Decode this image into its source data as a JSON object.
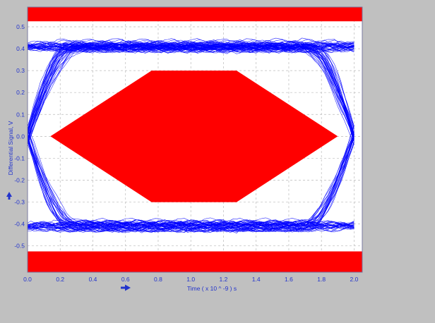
{
  "chart_data": {
    "type": "eye-diagram",
    "xlabel": "Time  ( x 10 ^ -9 ) s",
    "ylabel": "Differential Signal, V",
    "xlim": [
      0.0,
      2.05
    ],
    "ylim": [
      -0.62,
      0.59
    ],
    "x_ticks": [
      0.0,
      0.2,
      0.4,
      0.6,
      0.8,
      1.0,
      1.2,
      1.4,
      1.6,
      1.8,
      2.0
    ],
    "x_tick_labels": [
      "0.0",
      "0.2",
      "0.4",
      "0.6",
      "0.8",
      "1.0",
      "1.2",
      "1.4",
      "1.6",
      "1.8",
      "2.0"
    ],
    "y_ticks": [
      0.5,
      0.4,
      0.3,
      0.2,
      0.1,
      0.0,
      -0.1,
      -0.2,
      -0.3,
      -0.4,
      -0.5
    ],
    "y_tick_labels": [
      "0.5",
      "0.4",
      "0.3",
      "0.2",
      "0.1",
      "0.0",
      "-0.1",
      "-0.2",
      "-0.3",
      "-0.4",
      "-0.5"
    ],
    "grid": true,
    "mask": {
      "upper_limit": 0.525,
      "lower_limit": -0.525,
      "hexagon": [
        [
          0.14,
          0.0
        ],
        [
          0.76,
          0.3
        ],
        [
          1.28,
          0.3
        ],
        [
          1.9,
          0.0
        ],
        [
          1.28,
          -0.3
        ],
        [
          0.76,
          -0.3
        ]
      ]
    },
    "signal": {
      "high_level": 0.41,
      "low_level": -0.41,
      "crossings": [
        0.0,
        2.0
      ],
      "trace_count": 110,
      "x_range": [
        0.0,
        2.0
      ]
    },
    "colors": {
      "mask": "#ff0000",
      "trace": "#0000ff",
      "axis_text": "#2233cc",
      "grid": "#bbbbbb",
      "plot_bg": "#ffffff",
      "window_bg": "#c0c0c0"
    },
    "icons": [
      "arrow-up-icon",
      "arrow-right-icon"
    ]
  }
}
